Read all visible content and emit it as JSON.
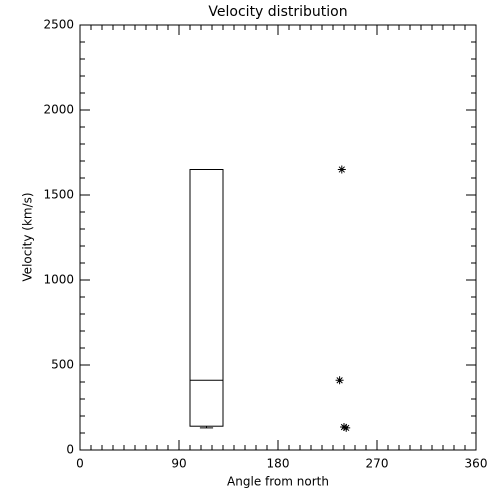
{
  "chart_data": {
    "type": "box",
    "title": "Velocity distribution",
    "x_label": "Angle from north",
    "y_label": "Velocity (km/s)",
    "xlim": [
      0,
      360
    ],
    "xticks": [
      0,
      90,
      180,
      270,
      360
    ],
    "x_minor_per_major": 9,
    "ylim": [
      0,
      2500
    ],
    "yticks": [
      0,
      500,
      1000,
      1500,
      2000,
      2500
    ],
    "y_minor_per_major": 5,
    "color": "#000000",
    "box": {
      "x": [
        100,
        130
      ],
      "whisker_low": 130,
      "q1": 140,
      "median": 410,
      "q3": 1650,
      "whisker_high": 1650
    },
    "points": {
      "type": "scatter",
      "x": [
        238,
        236,
        240,
        242
      ],
      "y": [
        1650,
        410,
        135,
        130
      ]
    }
  }
}
